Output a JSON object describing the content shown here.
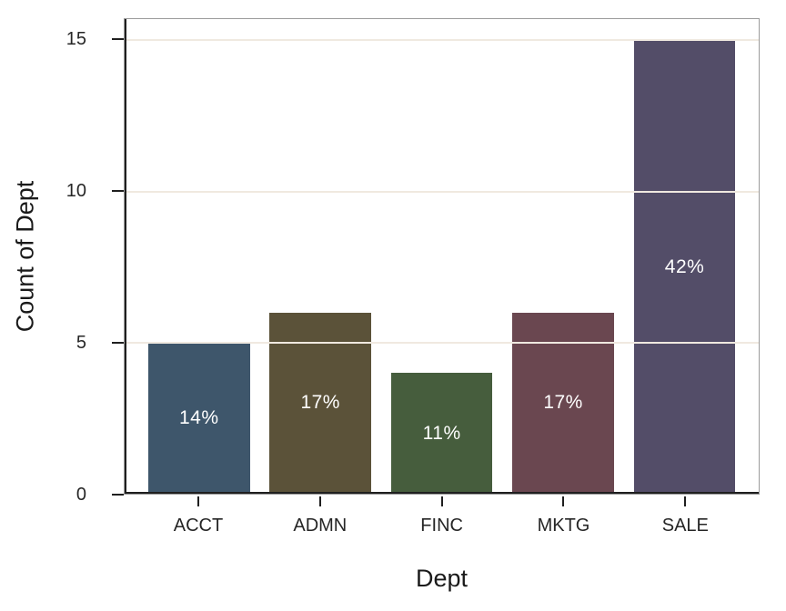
{
  "chart_data": {
    "type": "bar",
    "title": "",
    "xlabel": "Dept",
    "ylabel": "Count of Dept",
    "categories": [
      "ACCT",
      "ADMN",
      "FINC",
      "MKTG",
      "SALE"
    ],
    "values": [
      5,
      6,
      4,
      6,
      15
    ],
    "percent_labels": [
      "14%",
      "17%",
      "11%",
      "17%",
      "42%"
    ],
    "bar_colors": [
      "#3e566b",
      "#5b5239",
      "#465d3d",
      "#6a4750",
      "#534d68"
    ],
    "yticks": [
      0,
      5,
      10,
      15
    ],
    "gridline_values": [
      5,
      10,
      15
    ],
    "ylim": [
      0,
      15.7
    ],
    "grid": true,
    "legend": false,
    "colors": {
      "background": "#ffffff",
      "plot_border": "#9b9b9b",
      "axis": "#1f1f1f",
      "gridline": "#f0e9e0",
      "tick_text": "#262626",
      "title_text": "#1a1a1a",
      "bar_label_text": "#ffffff"
    }
  }
}
